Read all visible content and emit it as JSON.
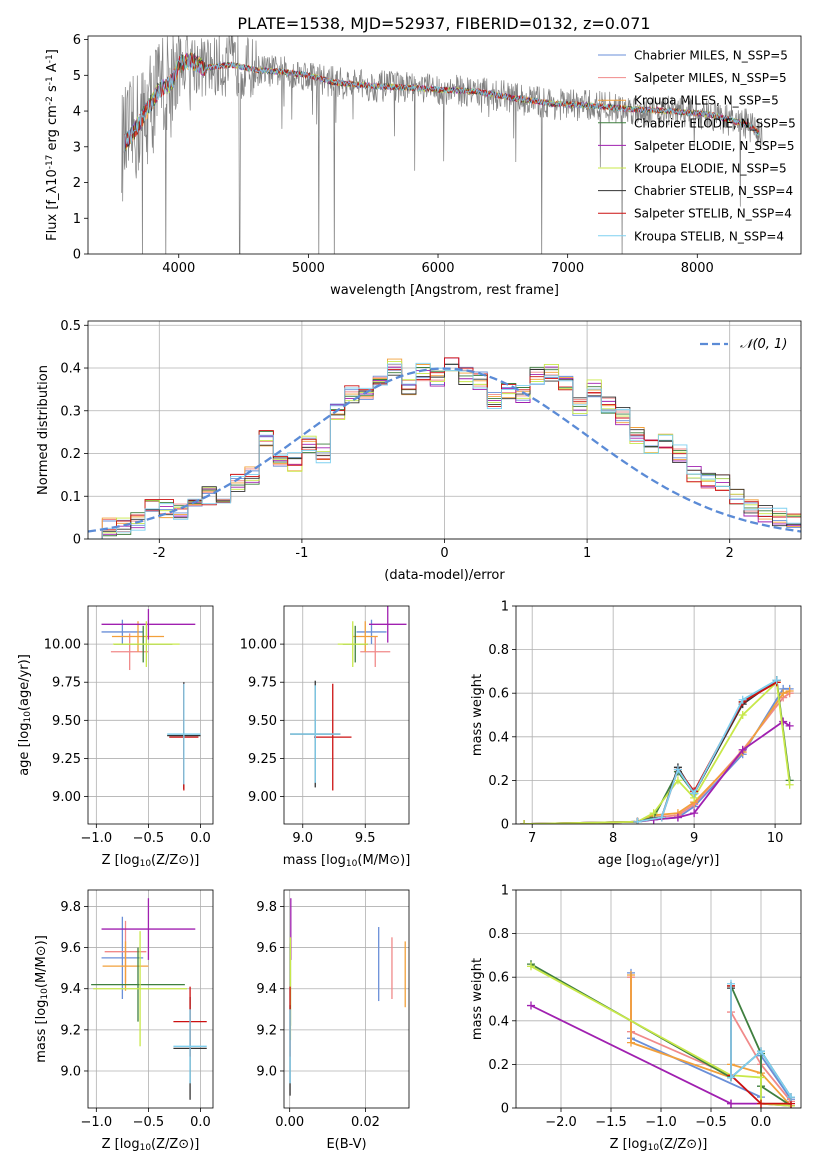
{
  "title": "PLATE=1538, MJD=52937, FIBERID=0132, z=0.071",
  "colors": {
    "chabrier_miles": "#6a8fd8",
    "salpeter_miles": "#f08a8a",
    "kroupa_miles": "#f2a03b",
    "chabrier_elodie": "#3f7f3f",
    "salpeter_elodie": "#a020b0",
    "kroupa_elodie": "#c8e84a",
    "chabrier_stelib": "#333333",
    "salpeter_stelib": "#cc1111",
    "kroupa_stelib": "#7fd0f0",
    "normal": "#5b8bd6",
    "data": "#808080"
  },
  "chart_data": [
    {
      "id": "spectrum",
      "type": "line",
      "xlabel": "wavelength [Angstrom, rest frame]",
      "ylabel": "Flux [f_λ10^{-17} erg cm^{-2} s^{-1} A^{-1}]",
      "xlim": [
        3300,
        8800
      ],
      "ylim": [
        0,
        6.1
      ],
      "xticks": [
        4000,
        5000,
        6000,
        7000,
        8000
      ],
      "yticks": [
        0,
        1,
        2,
        3,
        4,
        5,
        6
      ],
      "grid": false,
      "legend_position": "top-right",
      "legend": [
        {
          "name": "Chabrier MILES, N_SSP=5",
          "color_key": "chabrier_miles"
        },
        {
          "name": "Salpeter MILES, N_SSP=5",
          "color_key": "salpeter_miles"
        },
        {
          "name": "Kroupa MILES, N_SSP=5",
          "color_key": "kroupa_miles"
        },
        {
          "name": "Chabrier ELODIE, N_SSP=5",
          "color_key": "chabrier_elodie"
        },
        {
          "name": "Salpeter ELODIE, N_SSP=5",
          "color_key": "salpeter_elodie"
        },
        {
          "name": "Kroupa ELODIE, N_SSP=5",
          "color_key": "kroupa_elodie"
        },
        {
          "name": "Chabrier STELIB, N_SSP=4",
          "color_key": "chabrier_stelib"
        },
        {
          "name": "Salpeter STELIB, N_SSP=4",
          "color_key": "salpeter_stelib"
        },
        {
          "name": "Kroupa STELIB, N_SSP=4",
          "color_key": "kroupa_stelib"
        }
      ],
      "continuum": {
        "x": [
          3560,
          3650,
          3750,
          3850,
          3950,
          4000,
          4100,
          4200,
          4400,
          4600,
          4800,
          5000,
          5200,
          5500,
          5800,
          6000,
          6300,
          6600,
          6900,
          7200,
          7500,
          7800,
          8100,
          8400,
          8500
        ],
        "y": [
          3.0,
          3.4,
          4.0,
          4.6,
          4.8,
          5.3,
          5.4,
          5.2,
          5.3,
          5.15,
          5.1,
          5.0,
          4.8,
          4.7,
          4.65,
          4.6,
          4.55,
          4.35,
          4.2,
          4.15,
          4.05,
          4.0,
          3.9,
          3.6,
          3.3
        ]
      }
    },
    {
      "id": "residuals",
      "type": "histogram",
      "xlabel": "(data-model)/error",
      "ylabel": "Normed distribution",
      "xlim": [
        -2.5,
        2.5
      ],
      "ylim": [
        0,
        0.51
      ],
      "xticks": [
        -2,
        -1,
        0,
        1,
        2
      ],
      "yticks": [
        0.0,
        0.1,
        0.2,
        0.3,
        0.4,
        0.5
      ],
      "grid": true,
      "bin_width": 0.1,
      "bins_start": -2.5,
      "reference_curve": {
        "name": "𝒩(0, 1)",
        "mean": 0,
        "sigma": 1
      },
      "base_values": [
        0.02,
        0.03,
        0.03,
        0.04,
        0.07,
        0.07,
        0.06,
        0.08,
        0.1,
        0.1,
        0.13,
        0.15,
        0.24,
        0.18,
        0.18,
        0.22,
        0.2,
        0.3,
        0.34,
        0.33,
        0.37,
        0.4,
        0.36,
        0.39,
        0.38,
        0.41,
        0.38,
        0.37,
        0.32,
        0.35,
        0.34,
        0.38,
        0.39,
        0.37,
        0.31,
        0.35,
        0.31,
        0.29,
        0.24,
        0.21,
        0.23,
        0.2,
        0.15,
        0.14,
        0.13,
        0.1,
        0.07,
        0.06,
        0.05,
        0.04
      ]
    },
    {
      "id": "age-vs-Z",
      "type": "errorbar",
      "xlabel": "Z [log10(Z/Z⊙)]",
      "ylabel": "age  [log10(age/yr)]",
      "xlim": [
        -1.08,
        0.12
      ],
      "ylim": [
        8.82,
        10.25
      ],
      "xticks": [
        -1.0,
        -0.5,
        0.0
      ],
      "xticklabels": [
        "−1.0",
        "−0.5",
        "0.0"
      ],
      "yticks": [
        9.0,
        9.25,
        9.5,
        9.75,
        10.0
      ],
      "yticklabels": [
        "9.00",
        "9.25",
        "9.50",
        "9.75",
        "10.00"
      ],
      "grid": true,
      "points": [
        {
          "s": "chabrier_miles",
          "x": -0.75,
          "xerr": 0.2,
          "y": 10.08,
          "yerr": 0.08
        },
        {
          "s": "salpeter_miles",
          "x": -0.68,
          "xerr": 0.18,
          "y": 9.95,
          "yerr": 0.12
        },
        {
          "s": "kroupa_miles",
          "x": -0.6,
          "xerr": 0.25,
          "y": 10.05,
          "yerr": 0.1
        },
        {
          "s": "chabrier_elodie",
          "x": -0.55,
          "xerr": 0.28,
          "y": 10.0,
          "yerr": 0.12
        },
        {
          "s": "salpeter_elodie",
          "x": -0.5,
          "xerr": 0.45,
          "y": 10.13,
          "yerr": 0.1
        },
        {
          "s": "kroupa_elodie",
          "x": -0.52,
          "xerr": 0.32,
          "y": 10.0,
          "yerr": 0.15
        },
        {
          "s": "chabrier_stelib",
          "x": -0.16,
          "xerr": 0.16,
          "y": 9.4,
          "yerr": 0.35
        },
        {
          "s": "salpeter_stelib",
          "x": -0.16,
          "xerr": 0.14,
          "y": 9.39,
          "yerr": 0.35
        },
        {
          "s": "kroupa_stelib",
          "x": -0.16,
          "xerr": 0.16,
          "y": 9.41,
          "yerr": 0.33
        }
      ]
    },
    {
      "id": "age-vs-mass",
      "type": "errorbar",
      "xlabel": "mass [log10(M/M⊙)]",
      "ylabel": "",
      "xlim": [
        8.85,
        9.85
      ],
      "ylim": [
        8.82,
        10.25
      ],
      "xticks": [
        9.0,
        9.5
      ],
      "xticklabels": [
        "9.0",
        "9.5"
      ],
      "yticks": [
        9.0,
        9.25,
        9.5,
        9.75,
        10.0
      ],
      "yticklabels": [
        "9.00",
        "9.25",
        "9.50",
        "9.75",
        "10.00"
      ],
      "grid": true,
      "points": [
        {
          "s": "chabrier_miles",
          "x": 9.55,
          "xerr": 0.12,
          "y": 10.08,
          "yerr": 0.08
        },
        {
          "s": "salpeter_miles",
          "x": 9.58,
          "xerr": 0.12,
          "y": 9.95,
          "yerr": 0.1
        },
        {
          "s": "kroupa_miles",
          "x": 9.5,
          "xerr": 0.1,
          "y": 10.05,
          "yerr": 0.1
        },
        {
          "s": "chabrier_elodie",
          "x": 9.42,
          "xerr": 0.1,
          "y": 10.0,
          "yerr": 0.12
        },
        {
          "s": "salpeter_elodie",
          "x": 9.68,
          "xerr": 0.15,
          "y": 10.13,
          "yerr": 0.12
        },
        {
          "s": "kroupa_elodie",
          "x": 9.4,
          "xerr": 0.12,
          "y": 10.0,
          "yerr": 0.15
        },
        {
          "s": "chabrier_stelib",
          "x": 9.1,
          "xerr": 0.2,
          "y": 9.41,
          "yerr": 0.35
        },
        {
          "s": "salpeter_stelib",
          "x": 9.24,
          "xerr": 0.15,
          "y": 9.39,
          "yerr": 0.35
        },
        {
          "s": "kroupa_stelib",
          "x": 9.1,
          "xerr": 0.2,
          "y": 9.41,
          "yerr": 0.32
        }
      ]
    },
    {
      "id": "weight-vs-age",
      "type": "line",
      "xlabel": "age  [log10(age/yr)]",
      "ylabel": "mass weight",
      "xlim": [
        6.8,
        10.32
      ],
      "ylim": [
        0,
        1.0
      ],
      "xticks": [
        7,
        8,
        9,
        10
      ],
      "yticks": [
        0.0,
        0.2,
        0.4,
        0.6,
        0.8,
        1.0
      ],
      "grid": true,
      "series": [
        {
          "s": "chabrier_miles",
          "x": [
            6.9,
            8.3,
            8.5,
            8.8,
            9.0,
            9.6,
            10.1,
            10.18
          ],
          "y": [
            0.0,
            0.01,
            0.02,
            0.03,
            0.08,
            0.32,
            0.62,
            0.62
          ]
        },
        {
          "s": "salpeter_miles",
          "x": [
            6.9,
            8.3,
            8.5,
            8.8,
            9.0,
            9.6,
            10.1,
            10.18
          ],
          "y": [
            0.0,
            0.01,
            0.03,
            0.04,
            0.09,
            0.34,
            0.58,
            0.6
          ]
        },
        {
          "s": "kroupa_miles",
          "x": [
            6.9,
            8.3,
            8.5,
            8.8,
            9.0,
            9.6,
            10.1,
            10.18
          ],
          "y": [
            0.0,
            0.01,
            0.04,
            0.05,
            0.1,
            0.33,
            0.6,
            0.61
          ]
        },
        {
          "s": "chabrier_elodie",
          "x": [
            6.9,
            8.3,
            8.5,
            8.8,
            9.0,
            9.6,
            10.02,
            10.18
          ],
          "y": [
            0.0,
            0.01,
            0.03,
            0.24,
            0.14,
            0.56,
            0.66,
            0.2
          ]
        },
        {
          "s": "salpeter_elodie",
          "x": [
            6.9,
            8.3,
            8.5,
            8.8,
            9.0,
            9.6,
            10.1,
            10.18
          ],
          "y": [
            0.0,
            0.01,
            0.02,
            0.03,
            0.05,
            0.34,
            0.47,
            0.45
          ]
        },
        {
          "s": "kroupa_elodie",
          "x": [
            6.9,
            8.3,
            8.5,
            8.8,
            9.0,
            9.6,
            10.02,
            10.18
          ],
          "y": [
            0.0,
            0.01,
            0.05,
            0.2,
            0.12,
            0.5,
            0.65,
            0.18
          ]
        },
        {
          "s": "chabrier_stelib",
          "x": [
            8.3,
            8.6,
            8.8,
            9.0,
            9.6,
            10.02
          ],
          "y": [
            0.01,
            0.03,
            0.26,
            0.14,
            0.55,
            0.66
          ]
        },
        {
          "s": "salpeter_stelib",
          "x": [
            8.3,
            8.6,
            8.8,
            9.0,
            9.6,
            10.02
          ],
          "y": [
            0.01,
            0.03,
            0.25,
            0.15,
            0.56,
            0.65
          ]
        },
        {
          "s": "kroupa_stelib",
          "x": [
            8.3,
            8.6,
            8.8,
            9.0,
            9.6,
            10.02
          ],
          "y": [
            0.01,
            0.03,
            0.25,
            0.14,
            0.57,
            0.66
          ]
        }
      ]
    },
    {
      "id": "mass-vs-Z",
      "type": "errorbar",
      "xlabel": "Z [log10(Z/Z⊙)]",
      "ylabel": "mass [log10(M/M⊙)]",
      "xlim": [
        -1.08,
        0.12
      ],
      "ylim": [
        8.82,
        9.88
      ],
      "xticks": [
        -1.0,
        -0.5,
        0.0
      ],
      "xticklabels": [
        "−1.0",
        "−0.5",
        "0.0"
      ],
      "yticks": [
        9.0,
        9.2,
        9.4,
        9.6,
        9.8
      ],
      "yticklabels": [
        "9.0",
        "9.2",
        "9.4",
        "9.6",
        "9.8"
      ],
      "grid": true,
      "points": [
        {
          "s": "chabrier_miles",
          "x": -0.75,
          "xerr": 0.2,
          "y": 9.55,
          "yerr": 0.2
        },
        {
          "s": "salpeter_miles",
          "x": -0.72,
          "xerr": 0.2,
          "y": 9.58,
          "yerr": 0.15
        },
        {
          "s": "kroupa_miles",
          "x": -0.72,
          "xerr": 0.22,
          "y": 9.51,
          "yerr": 0.12
        },
        {
          "s": "chabrier_elodie",
          "x": -0.6,
          "xerr": 0.45,
          "y": 9.42,
          "yerr": 0.18
        },
        {
          "s": "salpeter_elodie",
          "x": -0.5,
          "xerr": 0.45,
          "y": 9.69,
          "yerr": 0.15
        },
        {
          "s": "kroupa_elodie",
          "x": -0.58,
          "xerr": 0.45,
          "y": 9.4,
          "yerr": 0.28
        },
        {
          "s": "chabrier_stelib",
          "x": -0.1,
          "xerr": 0.16,
          "y": 9.11,
          "yerr": 0.25
        },
        {
          "s": "salpeter_stelib",
          "x": -0.1,
          "xerr": 0.16,
          "y": 9.24,
          "yerr": 0.17
        },
        {
          "s": "kroupa_stelib",
          "x": -0.1,
          "xerr": 0.16,
          "y": 9.12,
          "yerr": 0.18
        }
      ]
    },
    {
      "id": "mass-vs-ebv",
      "type": "errorbar",
      "xlabel": "E(B-V)",
      "ylabel": "",
      "xlim": [
        -0.0015,
        0.0315
      ],
      "ylim": [
        8.82,
        9.88
      ],
      "xticks": [
        0.0,
        0.02
      ],
      "xticklabels": [
        "0.00",
        "0.02"
      ],
      "yticks": [
        9.0,
        9.2,
        9.4,
        9.6,
        9.8
      ],
      "yticklabels": [
        "9.0",
        "9.2",
        "9.4",
        "9.6",
        "9.8"
      ],
      "grid": true,
      "points": [
        {
          "s": "chabrier_miles",
          "x": 0.0235,
          "xerr": 0,
          "y": 9.52,
          "yerr": 0.18
        },
        {
          "s": "salpeter_miles",
          "x": 0.027,
          "xerr": 0,
          "y": 9.5,
          "yerr": 0.15
        },
        {
          "s": "kroupa_miles",
          "x": 0.0305,
          "xerr": 0,
          "y": 9.47,
          "yerr": 0.16
        },
        {
          "s": "chabrier_elodie",
          "x": 0.0002,
          "xerr": 0,
          "y": 9.42,
          "yerr": 0.2
        },
        {
          "s": "salpeter_elodie",
          "x": 0.0003,
          "xerr": 0,
          "y": 9.69,
          "yerr": 0.15
        },
        {
          "s": "kroupa_elodie",
          "x": 0.0002,
          "xerr": 0,
          "y": 9.4,
          "yerr": 0.25
        },
        {
          "s": "chabrier_stelib",
          "x": 0.0001,
          "xerr": 0,
          "y": 9.1,
          "yerr": 0.22
        },
        {
          "s": "salpeter_stelib",
          "x": 0.0001,
          "xerr": 0,
          "y": 9.24,
          "yerr": 0.17
        },
        {
          "s": "kroupa_stelib",
          "x": 0.0001,
          "xerr": 0,
          "y": 9.12,
          "yerr": 0.18
        }
      ]
    },
    {
      "id": "weight-vs-Z",
      "type": "line",
      "xlabel": "Z [log10(Z/Z⊙)]",
      "ylabel": "mass weight",
      "xlim": [
        -2.45,
        0.4
      ],
      "ylim": [
        0,
        1.0
      ],
      "xticks": [
        -2.0,
        -1.5,
        -1.0,
        -0.5,
        0.0
      ],
      "xticklabels": [
        "−2.0",
        "−1.5",
        "−1.0",
        "−0.5",
        "0.0"
      ],
      "yticks": [
        0.0,
        0.2,
        0.4,
        0.6,
        0.8,
        1.0
      ],
      "grid": true,
      "series": [
        {
          "s": "chabrier_miles",
          "x": [
            -1.3,
            -1.3,
            0.0,
            0.0,
            0.3,
            0.3
          ],
          "y": [
            0.62,
            0.32,
            0.05,
            0.24,
            0.04,
            0.01
          ]
        },
        {
          "s": "salpeter_miles",
          "x": [
            -1.3,
            -1.3,
            -0.3,
            -0.3,
            0.0,
            0.3
          ],
          "y": [
            0.6,
            0.35,
            0.15,
            0.44,
            0.2,
            0.03
          ]
        },
        {
          "s": "kroupa_miles",
          "x": [
            -1.3,
            -1.3,
            -0.3,
            -0.3,
            0.0,
            0.3
          ],
          "y": [
            0.61,
            0.3,
            0.14,
            0.2,
            0.16,
            0.01
          ]
        },
        {
          "s": "chabrier_elodie",
          "x": [
            -2.3,
            -0.3,
            -0.3,
            0.0,
            0.0,
            0.3
          ],
          "y": [
            0.66,
            0.14,
            0.56,
            0.25,
            0.1,
            0.01
          ]
        },
        {
          "s": "salpeter_elodie",
          "x": [
            -2.3,
            -0.3,
            -0.3,
            0.0,
            0.3
          ],
          "y": [
            0.47,
            0.02,
            0.02,
            0.02,
            0.01
          ]
        },
        {
          "s": "kroupa_elodie",
          "x": [
            -2.3,
            -0.3,
            0.0,
            0.0,
            0.3
          ],
          "y": [
            0.65,
            0.15,
            0.14,
            0.02,
            0.01
          ]
        },
        {
          "s": "chabrier_stelib",
          "x": [
            -0.3,
            -0.3,
            0.0,
            0.3
          ],
          "y": [
            0.55,
            0.14,
            0.26,
            0.05
          ]
        },
        {
          "s": "salpeter_stelib",
          "x": [
            -0.3,
            -0.3,
            0.0,
            0.3
          ],
          "y": [
            0.56,
            0.15,
            0.02,
            0.02
          ]
        },
        {
          "s": "kroupa_stelib",
          "x": [
            -0.3,
            -0.3,
            0.0,
            0.3
          ],
          "y": [
            0.57,
            0.14,
            0.26,
            0.05
          ]
        }
      ]
    }
  ]
}
